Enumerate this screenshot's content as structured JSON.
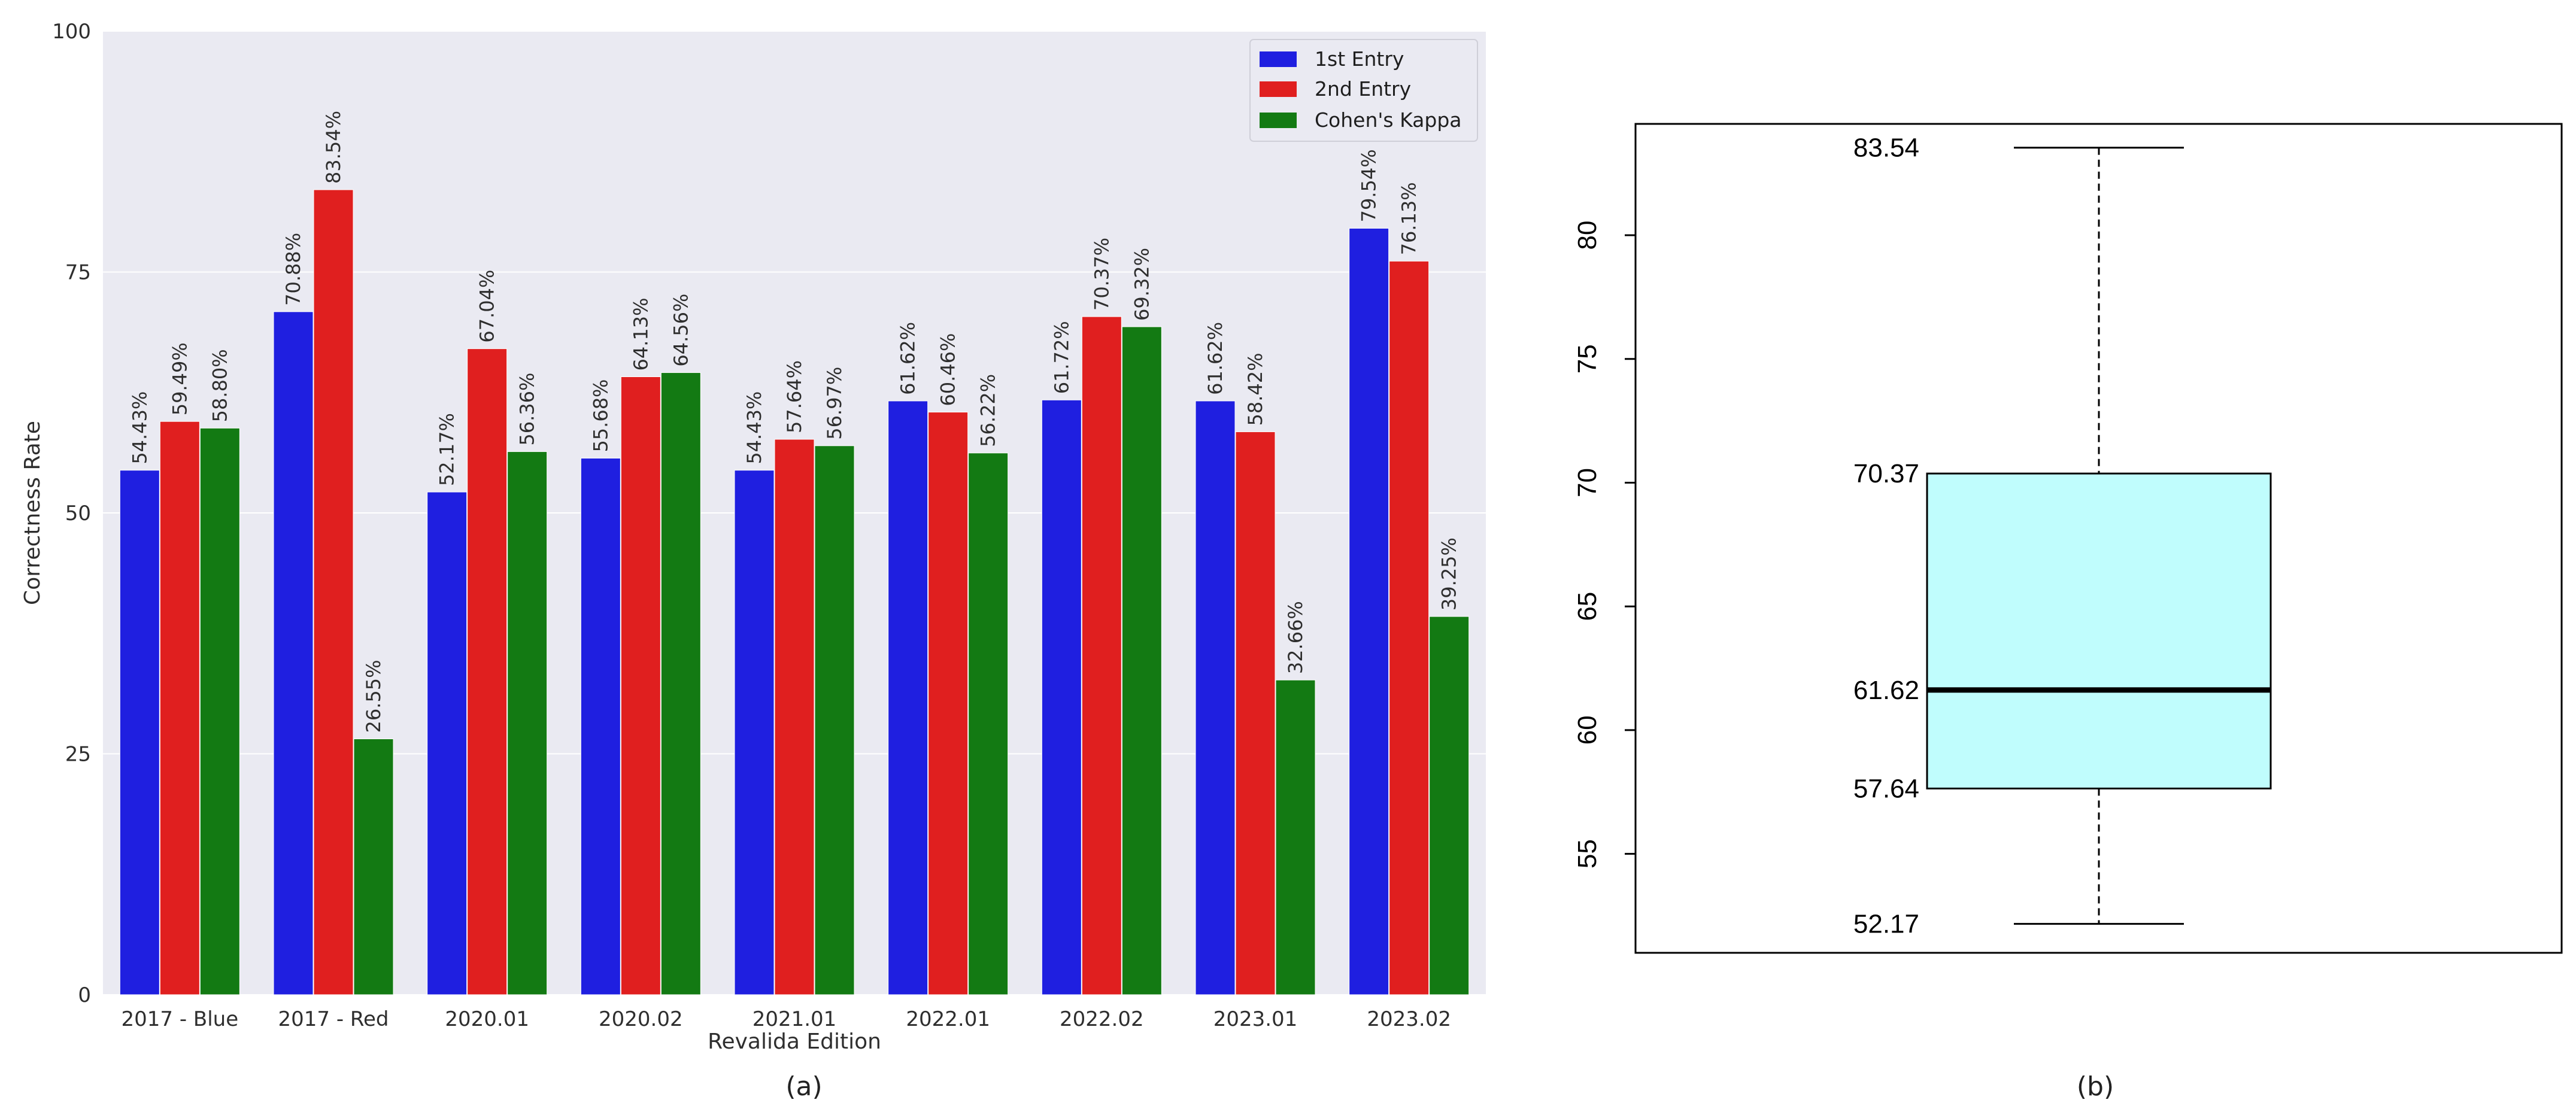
{
  "chart_data": [
    {
      "type": "bar",
      "panel": "(a)",
      "title": "",
      "xlabel": "Revalida Edition",
      "ylabel": "Correctness Rate",
      "ylim": [
        0,
        100
      ],
      "yticks": [
        "0",
        "25",
        "50",
        "75",
        "100"
      ],
      "grid": true,
      "legend_position": "top-right",
      "categories": [
        "2017 - Blue",
        "2017 - Red",
        "2020.01",
        "2020.02",
        "2021.01",
        "2022.01",
        "2022.02",
        "2023.01",
        "2023.02"
      ],
      "series": [
        {
          "name": "1st Entry",
          "color": "#1f1fe0",
          "values": [
            54.43,
            70.88,
            52.17,
            55.68,
            54.43,
            61.62,
            61.72,
            61.62,
            79.54
          ],
          "labels": [
            "54.43%",
            "70.88%",
            "52.17%",
            "55.68%",
            "54.43%",
            "61.62%",
            "61.72%",
            "61.62%",
            "79.54%"
          ]
        },
        {
          "name": "2nd Entry",
          "color": "#e01f1f",
          "values": [
            59.49,
            83.54,
            67.04,
            64.13,
            57.64,
            60.46,
            70.37,
            58.42,
            76.13
          ],
          "labels": [
            "59.49%",
            "83.54%",
            "67.04%",
            "64.13%",
            "57.64%",
            "60.46%",
            "70.37%",
            "58.42%",
            "76.13%"
          ]
        },
        {
          "name": "Cohen's Kappa",
          "color": "#137a13",
          "values": [
            58.8,
            26.55,
            56.36,
            64.56,
            56.97,
            56.22,
            69.32,
            32.66,
            39.25
          ],
          "labels": [
            "58.80%",
            "26.55%",
            "56.36%",
            "64.56%",
            "56.97%",
            "56.22%",
            "69.32%",
            "32.66%",
            "39.25%"
          ]
        }
      ]
    },
    {
      "type": "box",
      "panel": "(b)",
      "ylim": [
        51,
        84.5
      ],
      "yticks": [
        "55",
        "60",
        "65",
        "70",
        "75",
        "80"
      ],
      "fill_color": "#c0fdfd",
      "whisker_high": 83.54,
      "q3": 70.37,
      "median": 61.62,
      "q1": 57.64,
      "whisker_low": 52.17,
      "labels": {
        "whisker_high": "83.54",
        "q3": "70.37",
        "median": "61.62",
        "q1": "57.64",
        "whisker_low": "52.17"
      }
    }
  ]
}
